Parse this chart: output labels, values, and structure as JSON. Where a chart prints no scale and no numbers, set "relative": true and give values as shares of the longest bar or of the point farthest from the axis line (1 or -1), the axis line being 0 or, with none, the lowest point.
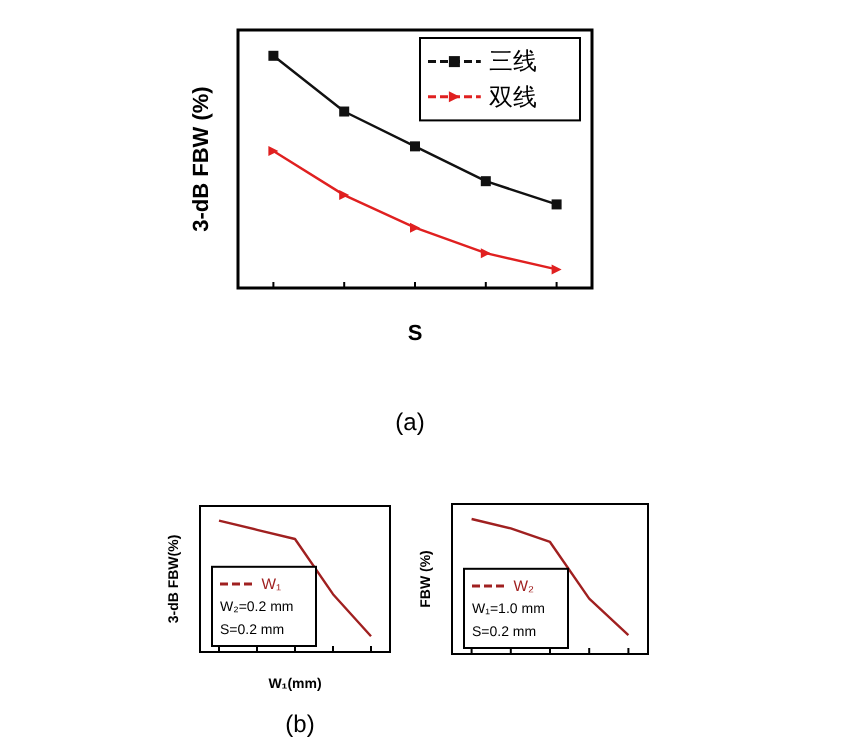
{
  "chart_data": [
    {
      "type": "line",
      "relative": true,
      "categories": [
        null,
        null,
        null,
        null,
        null
      ],
      "xlabel": "S",
      "ylabel": "3-dB FBW (%)",
      "legend": "top right",
      "annotations": [
        "(a)"
      ],
      "series": [
        {
          "name": "三线",
          "color": "#111111",
          "marker": "square",
          "values": [
            1,
            0.76,
            0.61,
            0.46,
            0.36
          ]
        },
        {
          "name": "双线",
          "color": "#e02020",
          "marker": "triangle",
          "values": [
            0.59,
            0.4,
            0.26,
            0.15,
            0.08
          ]
        }
      ]
    },
    {
      "type": "line",
      "relative": true,
      "categories": [
        null,
        null,
        null,
        null,
        null
      ],
      "xlabel": "W₁(mm)",
      "ylabel": "3-dB FBW(%)",
      "legend": "left",
      "annotations": [
        "W₂=0.2 mm",
        "S=0.2 mm",
        "(b)"
      ],
      "series": [
        {
          "name": "W₁",
          "color": "#a02020",
          "values": [
            1,
            0.93,
            0.86,
            0.44,
            0.12
          ]
        }
      ]
    },
    {
      "type": "line",
      "relative": true,
      "categories": [
        null,
        null,
        null,
        null,
        null
      ],
      "ylabel": "FBW (%)",
      "legend": "left",
      "annotations": [
        "W₁=1.0 mm",
        "S=0.2 mm"
      ],
      "series": [
        {
          "name": "W₂",
          "color": "#a02020",
          "values": [
            1,
            0.93,
            0.83,
            0.41,
            0.14
          ]
        }
      ]
    }
  ]
}
